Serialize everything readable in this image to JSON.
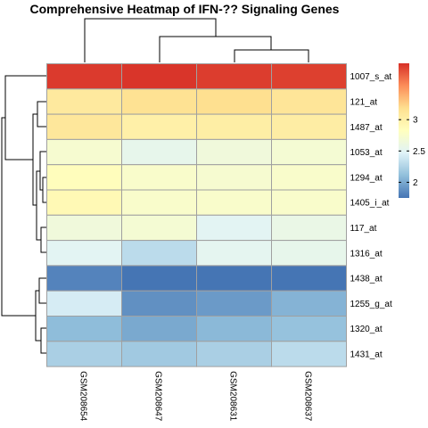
{
  "chart_data": {
    "type": "heatmap",
    "title": "Comprehensive Heatmap of IFN-?? Signaling Genes",
    "rows": [
      "1007_s_at",
      "121_at",
      "1487_at",
      "1053_at",
      "1294_at",
      "1405_i_at",
      "117_at",
      "1316_at",
      "1438_at",
      "1255_g_at",
      "1320_at",
      "1431_at"
    ],
    "columns": [
      "GSM208654",
      "GSM208647",
      "GSM208631",
      "GSM208637"
    ],
    "values": [
      [
        3.86,
        3.88,
        3.85,
        3.84
      ],
      [
        3.08,
        3.16,
        3.18,
        3.12
      ],
      [
        3.1,
        3.0,
        3.02,
        3.03
      ],
      [
        2.72,
        2.55,
        2.65,
        2.7
      ],
      [
        2.85,
        2.75,
        2.72,
        2.75
      ],
      [
        2.9,
        2.75,
        2.75,
        2.75
      ],
      [
        2.65,
        2.7,
        2.5,
        2.58
      ],
      [
        2.5,
        2.3,
        2.52,
        2.55
      ],
      [
        1.82,
        1.75,
        1.75,
        1.75
      ],
      [
        2.42,
        1.88,
        1.93,
        2.05
      ],
      [
        2.1,
        2.0,
        2.08,
        2.13
      ],
      [
        2.22,
        2.18,
        2.22,
        2.3
      ]
    ],
    "color_scale": {
      "min": 1.75,
      "max": 3.9,
      "stops": [
        "#4575b4",
        "#91bfdb",
        "#e0f3f8",
        "#ffffbf",
        "#fee090",
        "#fc8d59",
        "#d73027"
      ]
    },
    "legend": {
      "placement": "right",
      "ticks": [
        2,
        2.5,
        3
      ]
    },
    "grid": false
  }
}
